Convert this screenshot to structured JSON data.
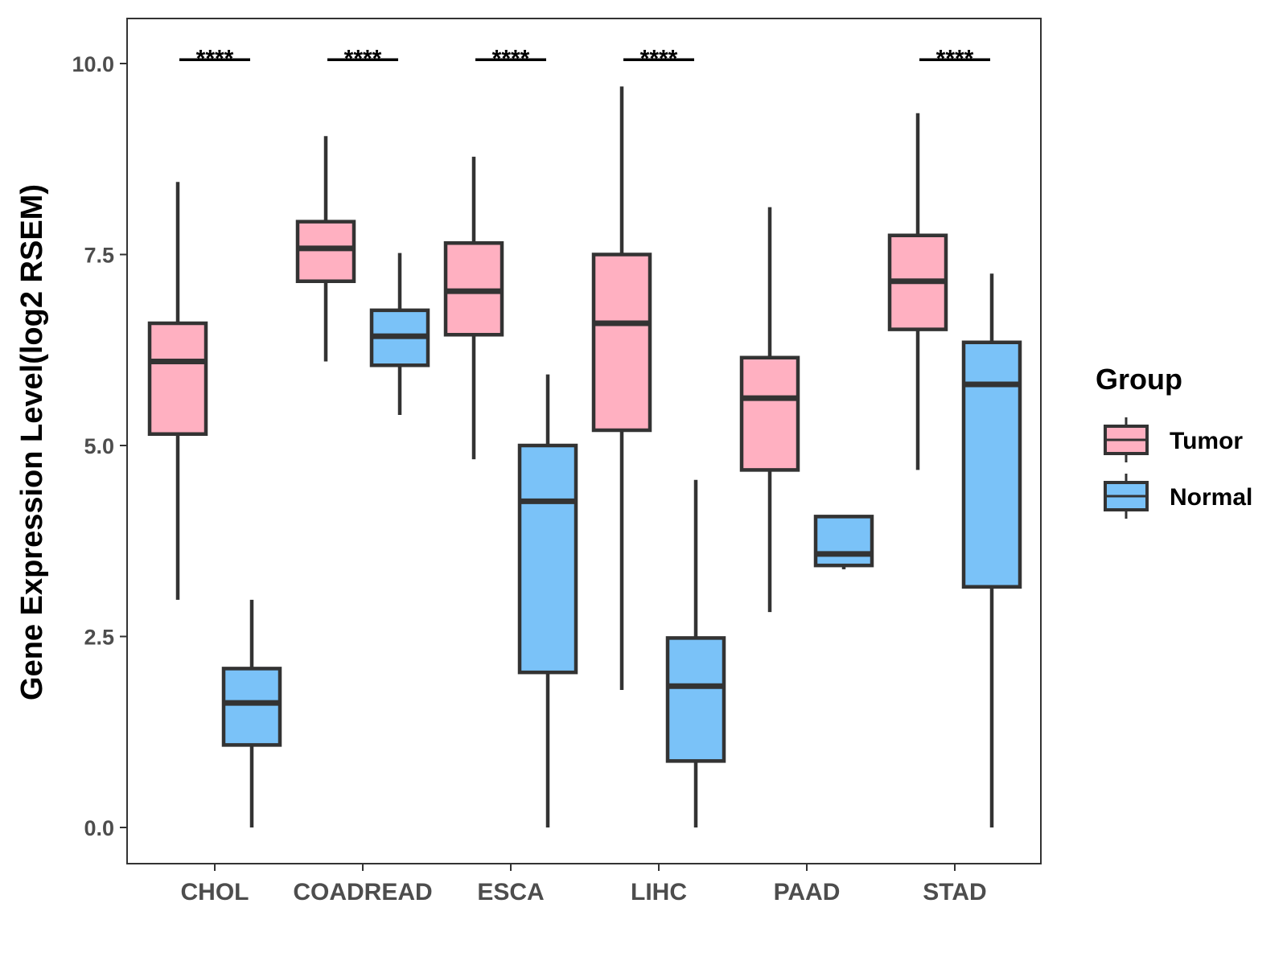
{
  "chart_data": {
    "type": "box",
    "title": "",
    "xlabel": "",
    "ylabel": "Gene Expression Level(log2 RSEM)",
    "ylim": [
      -0.5,
      10.6
    ],
    "yticks": [
      0.0,
      2.5,
      5.0,
      7.5,
      10.0
    ],
    "ytick_labels": [
      "0.0",
      "2.5",
      "5.0",
      "7.5",
      "10.0"
    ],
    "grid": false,
    "categories": [
      "CHOL",
      "COADREAD",
      "ESCA",
      "LIHC",
      "PAAD",
      "STAD"
    ],
    "legend": {
      "title": "Group",
      "position": "right",
      "entries": [
        {
          "name": "Tumor",
          "color": "#ffb0c1"
        },
        {
          "name": "Normal",
          "color": "#7ac2f8"
        }
      ]
    },
    "series": [
      {
        "name": "Tumor",
        "color": "#ffb0c1",
        "boxes": [
          {
            "category": "CHOL",
            "whisker_low": 2.98,
            "q1": 5.15,
            "median": 6.1,
            "q3": 6.6,
            "whisker_high": 8.45
          },
          {
            "category": "COADREAD",
            "whisker_low": 6.1,
            "q1": 7.15,
            "median": 7.58,
            "q3": 7.93,
            "whisker_high": 9.05
          },
          {
            "category": "ESCA",
            "whisker_low": 4.82,
            "q1": 6.45,
            "median": 7.02,
            "q3": 7.65,
            "whisker_high": 8.78
          },
          {
            "category": "LIHC",
            "whisker_low": 1.8,
            "q1": 5.2,
            "median": 6.6,
            "q3": 7.5,
            "whisker_high": 9.7
          },
          {
            "category": "PAAD",
            "whisker_low": 2.82,
            "q1": 4.68,
            "median": 5.62,
            "q3": 6.15,
            "whisker_high": 8.12
          },
          {
            "category": "STAD",
            "whisker_low": 4.68,
            "q1": 6.52,
            "median": 7.15,
            "q3": 7.75,
            "whisker_high": 9.35
          }
        ]
      },
      {
        "name": "Normal",
        "color": "#7ac2f8",
        "boxes": [
          {
            "category": "CHOL",
            "whisker_low": 0.0,
            "q1": 1.08,
            "median": 1.63,
            "q3": 2.08,
            "whisker_high": 2.98
          },
          {
            "category": "COADREAD",
            "whisker_low": 5.4,
            "q1": 6.05,
            "median": 6.43,
            "q3": 6.77,
            "whisker_high": 7.52
          },
          {
            "category": "ESCA",
            "whisker_low": 0.0,
            "q1": 2.03,
            "median": 4.27,
            "q3": 5.0,
            "whisker_high": 5.93
          },
          {
            "category": "LIHC",
            "whisker_low": 0.0,
            "q1": 0.87,
            "median": 1.85,
            "q3": 2.48,
            "whisker_high": 4.55
          },
          {
            "category": "PAAD",
            "whisker_low": 3.38,
            "q1": 3.43,
            "median": 3.58,
            "q3": 4.07,
            "whisker_high": 4.07
          },
          {
            "category": "STAD",
            "whisker_low": 0.0,
            "q1": 3.15,
            "median": 5.8,
            "q3": 6.35,
            "whisker_high": 7.25
          }
        ]
      }
    ],
    "significance": [
      {
        "category": "CHOL",
        "label": "****",
        "y": 10.05
      },
      {
        "category": "COADREAD",
        "label": "****",
        "y": 10.05
      },
      {
        "category": "ESCA",
        "label": "****",
        "y": 10.05
      },
      {
        "category": "LIHC",
        "label": "****",
        "y": 10.05
      },
      {
        "category": "STAD",
        "label": "****",
        "y": 10.05
      }
    ]
  }
}
